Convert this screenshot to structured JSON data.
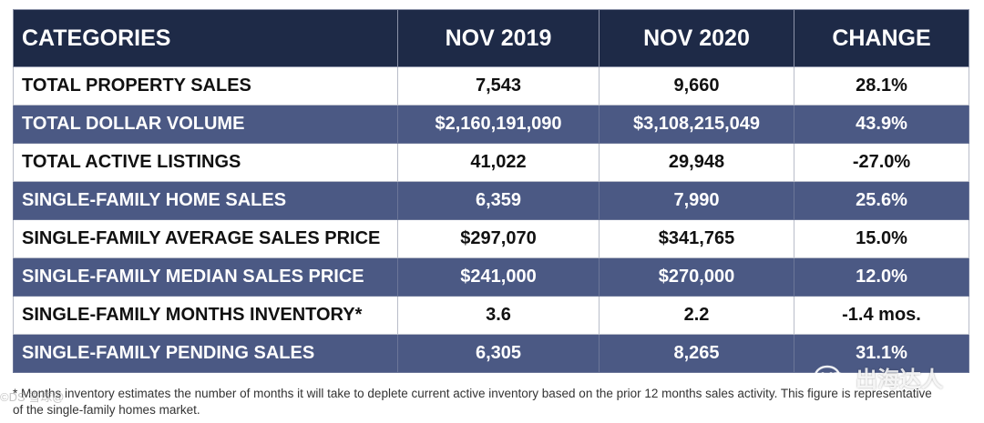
{
  "header": {
    "categories": "CATEGORIES",
    "col1": "NOV 2019",
    "col2": "NOV 2020",
    "change": "CHANGE"
  },
  "rows": [
    {
      "category": "TOTAL PROPERTY SALES",
      "nov2019": "7,543",
      "nov2020": "9,660",
      "change": "28.1%"
    },
    {
      "category": "TOTAL DOLLAR VOLUME",
      "nov2019": "$2,160,191,090",
      "nov2020": "$3,108,215,049",
      "change": "43.9%"
    },
    {
      "category": "TOTAL ACTIVE LISTINGS",
      "nov2019": "41,022",
      "nov2020": "29,948",
      "change": "-27.0%"
    },
    {
      "category": "SINGLE-FAMILY HOME SALES",
      "nov2019": "6,359",
      "nov2020": "7,990",
      "change": "25.6%"
    },
    {
      "category": "SINGLE-FAMILY AVERAGE SALES PRICE",
      "nov2019": "$297,070",
      "nov2020": "$341,765",
      "change": "15.0%"
    },
    {
      "category": "SINGLE-FAMILY MEDIAN SALES PRICE",
      "nov2019": "$241,000",
      "nov2020": "$270,000",
      "change": "12.0%"
    },
    {
      "category": "SINGLE-FAMILY MONTHS INVENTORY*",
      "nov2019": "3.6",
      "nov2020": "2.2",
      "change": "-1.4 mos."
    },
    {
      "category": "SINGLE-FAMILY PENDING SALES",
      "nov2019": "6,305",
      "nov2020": "8,265",
      "change": "31.1%"
    }
  ],
  "footnote": "* Months inventory estimates the number of months it will take to deplete current active inventory based on the prior 12 months sales activity. This figure is representative of the single-family homes market.",
  "watermark": {
    "left": "©DS 雪球@",
    "right": "出海达人",
    "icon": "wechat-icon"
  },
  "colors": {
    "header_bg": "#1e2a47",
    "dark_row_bg": "#4b5984",
    "light_row_bg": "#ffffff"
  }
}
